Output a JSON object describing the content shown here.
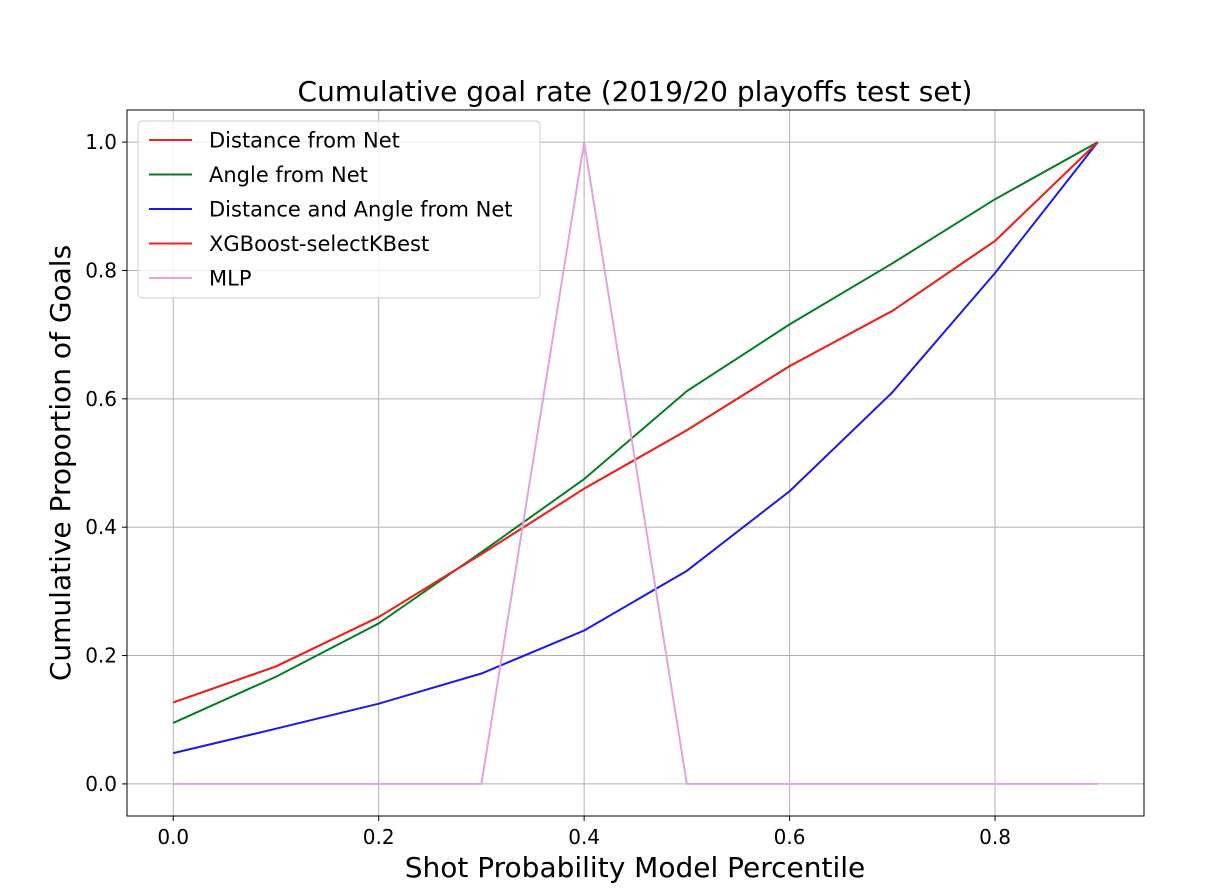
{
  "chart_data": {
    "type": "line",
    "title": "Cumulative goal rate (2019/20 playoffs test set)",
    "xlabel": "Shot Probability Model Percentile",
    "ylabel": "Cumulative Proportion of Goals",
    "xlim": [
      -0.045,
      0.945
    ],
    "ylim": [
      -0.05,
      1.05
    ],
    "xticks": [
      0.0,
      0.2,
      0.4,
      0.6,
      0.8
    ],
    "xtick_labels": [
      "0.0",
      "0.2",
      "0.4",
      "0.6",
      "0.8"
    ],
    "yticks": [
      0.0,
      0.2,
      0.4,
      0.6,
      0.8,
      1.0
    ],
    "ytick_labels": [
      "0.0",
      "0.2",
      "0.4",
      "0.6",
      "0.8",
      "1.0"
    ],
    "grid": true,
    "legend_position": "top-left",
    "x": [
      0.0,
      0.1,
      0.2,
      0.3,
      0.4,
      0.5,
      0.6,
      0.7,
      0.8,
      0.9
    ],
    "series": [
      {
        "name": "Distance from Net",
        "color": "#e8261e",
        "values": [
          0.127,
          0.183,
          0.26,
          0.358,
          0.46,
          0.551,
          0.651,
          0.737,
          0.846,
          1.0
        ]
      },
      {
        "name": "Angle from Net",
        "color": "#067d23",
        "values": [
          0.095,
          0.167,
          0.25,
          0.361,
          0.475,
          0.612,
          0.716,
          0.811,
          0.911,
          1.0
        ]
      },
      {
        "name": "Distance and Angle from Net",
        "color": "#1d18e8",
        "values": [
          0.048,
          0.086,
          0.125,
          0.172,
          0.239,
          0.332,
          0.456,
          0.61,
          0.796,
          1.0
        ]
      },
      {
        "name": "XGBoost-selectKBest",
        "color": "#e8261e",
        "values": [
          0.127,
          0.183,
          0.26,
          0.358,
          0.46,
          0.551,
          0.651,
          0.737,
          0.846,
          1.0
        ]
      },
      {
        "name": "MLP",
        "color": "#e3a3dc",
        "values": [
          0.0,
          0.0,
          0.0,
          0.0,
          1.0,
          0.0,
          0.0,
          0.0,
          0.0,
          0.0
        ]
      }
    ]
  }
}
